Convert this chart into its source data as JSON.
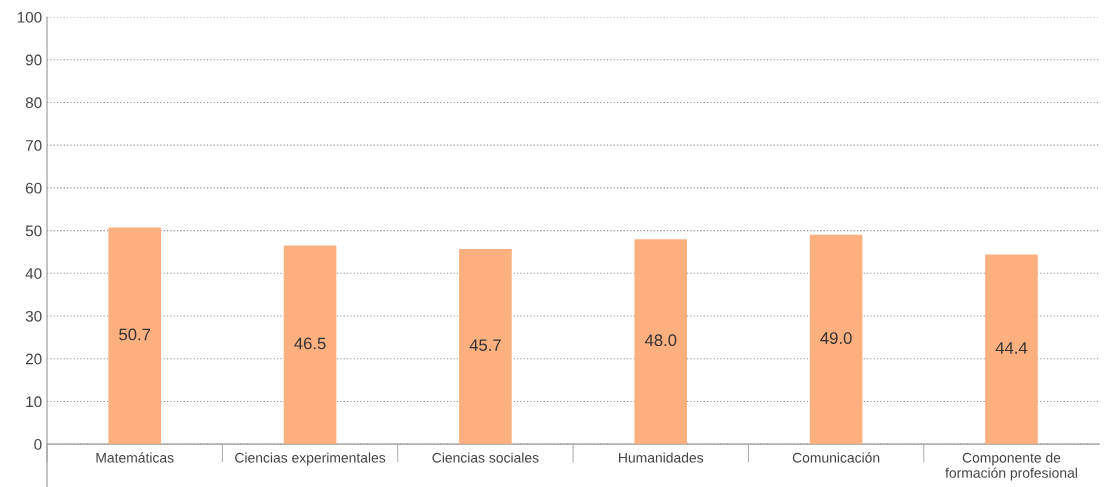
{
  "chart_data": {
    "type": "bar",
    "categories": [
      "Matemáticas",
      "Ciencias experimentales",
      "Ciencias sociales",
      "Humanidades",
      "Comunicación",
      "Componente de\nformación profesional"
    ],
    "values": [
      50.7,
      46.5,
      45.7,
      48.0,
      49.0,
      44.4
    ],
    "color": "#fdb07f",
    "ylim": [
      0,
      100
    ],
    "yticks": [
      0,
      10,
      20,
      30,
      40,
      50,
      60,
      70,
      80,
      90,
      100
    ],
    "value_labels": [
      "50.7",
      "46.5",
      "45.7",
      "48.0",
      "49.0",
      "44.4"
    ],
    "grid": "y",
    "legend": false
  }
}
